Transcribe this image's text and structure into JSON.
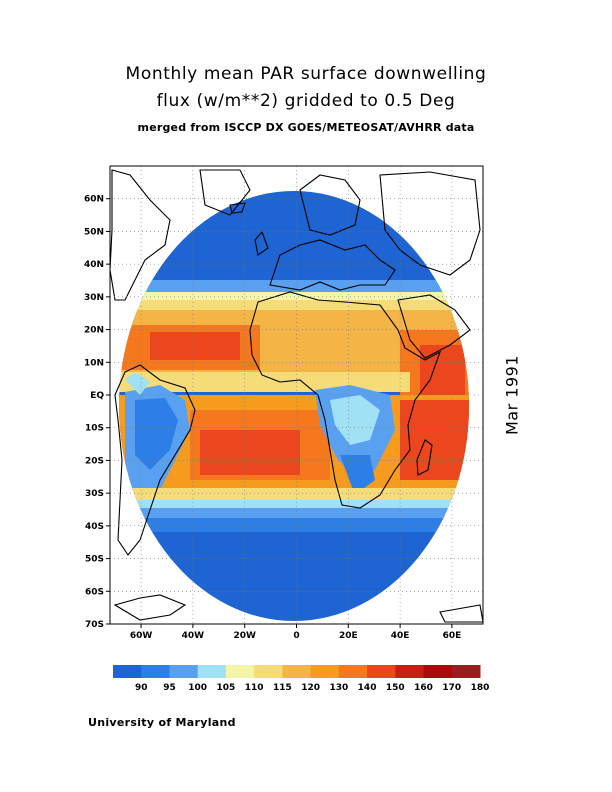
{
  "title": {
    "line1": "Monthly mean PAR surface downwelling",
    "line2": "flux (w/m**2) gridded to 0.5 Deg",
    "line3": "merged from ISCCP DX GOES/METEOSAT/AVHRR data"
  },
  "date_label": "Mar 1991",
  "credit": "University of Maryland",
  "map": {
    "lon_range": [
      -72,
      72
    ],
    "lat_range": [
      -70,
      70
    ],
    "lon_ticks": [
      {
        "value": -60,
        "label": "60W"
      },
      {
        "value": -40,
        "label": "40W"
      },
      {
        "value": -20,
        "label": "20W"
      },
      {
        "value": 0,
        "label": "0"
      },
      {
        "value": 20,
        "label": "20E"
      },
      {
        "value": 40,
        "label": "40E"
      },
      {
        "value": 60,
        "label": "60E"
      }
    ],
    "lat_ticks": [
      {
        "value": 60,
        "label": "60N"
      },
      {
        "value": 50,
        "label": "50N"
      },
      {
        "value": 40,
        "label": "40N"
      },
      {
        "value": 30,
        "label": "30N"
      },
      {
        "value": 20,
        "label": "20N"
      },
      {
        "value": 10,
        "label": "10N"
      },
      {
        "value": 0,
        "label": "EQ"
      },
      {
        "value": -10,
        "label": "10S"
      },
      {
        "value": -20,
        "label": "20S"
      },
      {
        "value": -30,
        "label": "30S"
      },
      {
        "value": -40,
        "label": "40S"
      },
      {
        "value": -50,
        "label": "50S"
      },
      {
        "value": -60,
        "label": "60S"
      },
      {
        "value": -70,
        "label": "70S"
      }
    ],
    "grid": "dotted"
  },
  "colorbar": {
    "colors": [
      "#1e64d2",
      "#2d7ee6",
      "#5aa0f0",
      "#a0e1f5",
      "#f5f5aa",
      "#f5dc78",
      "#f5b446",
      "#f59b1e",
      "#f5781e",
      "#eb461e",
      "#c81e14",
      "#aa0a0a",
      "#961e1e"
    ],
    "labels": [
      "90",
      "95",
      "100",
      "105",
      "110",
      "115",
      "120",
      "130",
      "140",
      "150",
      "160",
      "170",
      "180"
    ]
  }
}
